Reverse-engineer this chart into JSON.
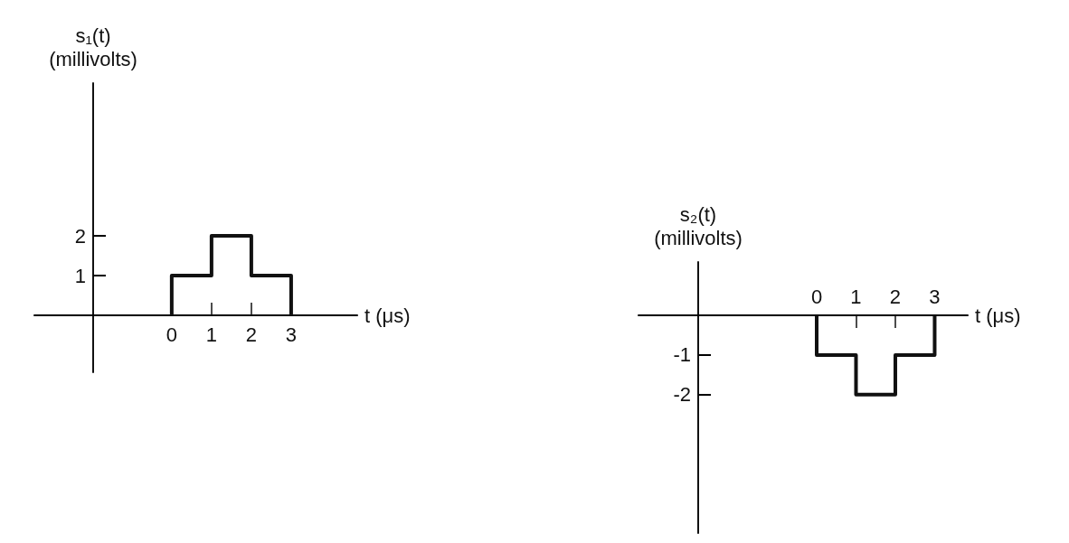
{
  "chart_data": [
    {
      "type": "step",
      "ylabel": "s₁(t)\n(millivolts)",
      "xlabel": "t (μs)",
      "x": [
        0,
        0,
        1,
        2,
        3
      ],
      "series": [
        {
          "color": "#111111",
          "values": [
            0,
            1,
            2,
            1,
            0
          ]
        }
      ],
      "xlim": [
        -3.45,
        4.66
      ],
      "ylim": [
        -1.43,
        5.84
      ],
      "xticks": [
        0,
        1,
        2,
        3
      ],
      "yticks": [
        1,
        2
      ],
      "grid": false,
      "marker": "none",
      "line_style": "solid"
    },
    {
      "type": "step",
      "ylabel": "s₂(t)\n(millivolts)",
      "xlabel": "t (μs)",
      "x": [
        0,
        0,
        1,
        2,
        3
      ],
      "series": [
        {
          "color": "#111111",
          "values": [
            0,
            -1,
            -2,
            -1,
            0
          ]
        }
      ],
      "xlim": [
        -4.53,
        3.84
      ],
      "ylim": [
        -5.5,
        1.35
      ],
      "xticks": [
        0,
        1,
        2,
        3
      ],
      "yticks": [
        -1,
        -2
      ],
      "grid": false,
      "marker": "none",
      "line_style": "solid"
    }
  ]
}
